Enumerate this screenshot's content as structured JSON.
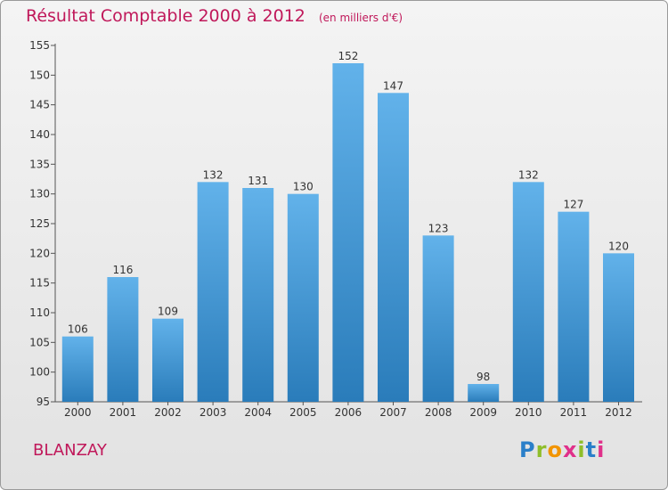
{
  "header": {
    "title": "Résultat Comptable 2000 à 2012",
    "subtitle": "(en milliers d'€)"
  },
  "footer": {
    "commune": "BLANZAY",
    "logo_letters": [
      "P",
      "r",
      "o",
      "x",
      "i",
      "t",
      "i"
    ],
    "logo_colors": [
      "#2a7fc9",
      "#8fbe2a",
      "#f29400",
      "#e0308a",
      "#8fbe2a",
      "#2a7fc9",
      "#e0308a"
    ]
  },
  "colors": {
    "title": "#c0185a",
    "bar_top": "#62b2ea",
    "bar_bottom": "#2a7cba",
    "axis": "#555555"
  },
  "chart_data": {
    "type": "bar",
    "title": "Résultat Comptable 2000 à 2012",
    "ylabel": "(en milliers d'€)",
    "categories": [
      "2000",
      "2001",
      "2002",
      "2003",
      "2004",
      "2005",
      "2006",
      "2007",
      "2008",
      "2009",
      "2010",
      "2011",
      "2012"
    ],
    "values": [
      106,
      116,
      109,
      132,
      131,
      130,
      152,
      147,
      123,
      98,
      132,
      127,
      120
    ],
    "ylim": [
      95,
      155
    ],
    "yticks": [
      95,
      100,
      105,
      110,
      115,
      120,
      125,
      130,
      135,
      140,
      145,
      150,
      155
    ],
    "grid": false
  }
}
